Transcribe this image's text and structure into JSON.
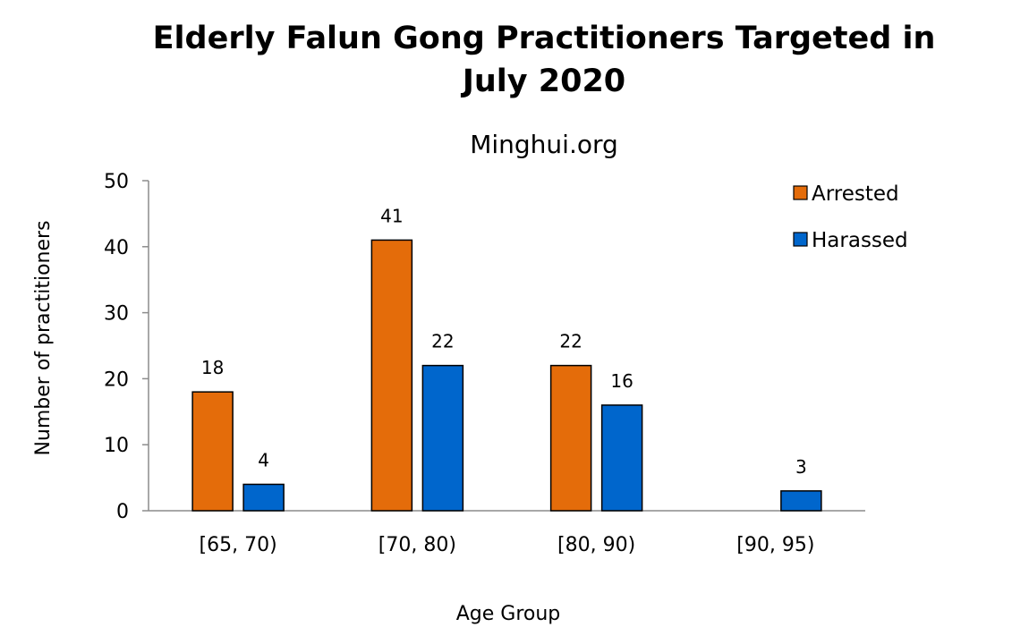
{
  "chart_data": {
    "type": "bar",
    "title_line1": "Elderly Falun Gong Practitioners Targeted in",
    "title_line2": "July 2020",
    "subtitle": "Minghui.org",
    "xlabel": "Age Group",
    "ylabel": "Number of practitioners",
    "categories": [
      "[65, 70)",
      "[70, 80)",
      "[80, 90)",
      "[90, 95)"
    ],
    "series": [
      {
        "name": "Arrested",
        "color": "#e46c0a",
        "values": [
          18,
          41,
          22,
          null
        ]
      },
      {
        "name": "Harassed",
        "color": "#0066cc",
        "values": [
          4,
          22,
          16,
          3
        ]
      }
    ],
    "ylim": [
      0,
      50
    ],
    "yticks": [
      0,
      10,
      20,
      30,
      40,
      50
    ],
    "grid": false,
    "legend": "top-right"
  }
}
